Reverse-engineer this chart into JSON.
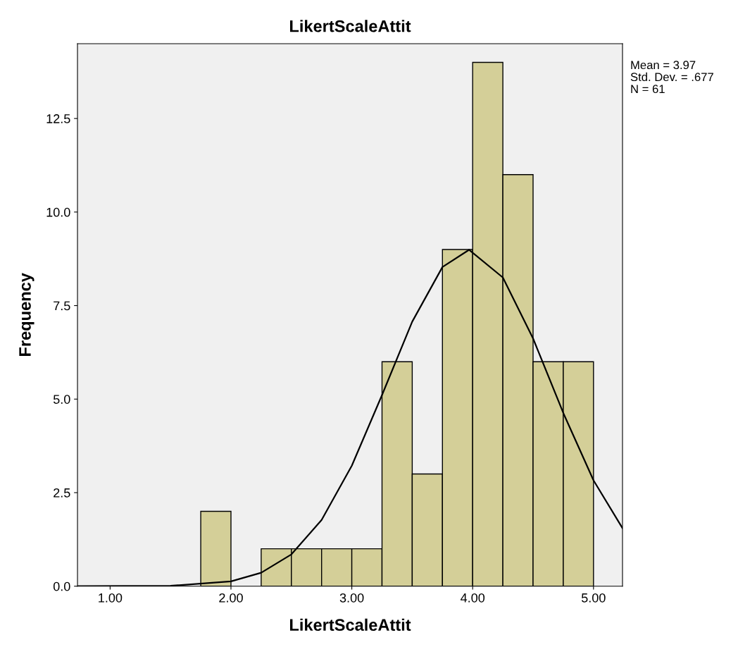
{
  "chart_data": {
    "type": "histogram",
    "title": "LikertScaleAttit",
    "xlabel": "LikertScaleAttit",
    "ylabel": "Frequency",
    "bins": [
      1.75,
      2.0,
      2.25,
      2.5,
      2.75,
      3.0,
      3.25,
      3.5,
      3.75,
      4.0,
      4.25,
      4.5,
      4.75,
      5.0
    ],
    "series": [
      {
        "color": "#d4cf98",
        "values": [
          2,
          0,
          1,
          1,
          1,
          1,
          6,
          3,
          9,
          14,
          11,
          6,
          6
        ]
      },
      {
        "type": "line",
        "color": "#000000",
        "x": [
          0.73,
          1.5,
          2.0,
          2.25,
          2.5,
          2.75,
          3.0,
          3.25,
          3.5,
          3.75,
          3.97,
          4.25,
          4.5,
          4.75,
          5.0,
          5.24
        ],
        "values": [
          0,
          0.01,
          0.13,
          0.36,
          0.85,
          1.77,
          3.22,
          5.11,
          7.07,
          8.53,
          8.99,
          8.25,
          6.62,
          4.63,
          2.83,
          1.55
        ]
      }
    ],
    "xlim": [
      0.73,
      5.24
    ],
    "ylim": [
      0,
      14.5
    ],
    "xticks": [
      {
        "value": 1,
        "label": "1.00"
      },
      {
        "value": 2,
        "label": "2.00"
      },
      {
        "value": 3,
        "label": "3.00"
      },
      {
        "value": 4,
        "label": "4.00"
      },
      {
        "value": 5,
        "label": "5.00"
      }
    ],
    "yticks": [
      {
        "value": 0,
        "label": "0.0"
      },
      {
        "value": 2.5,
        "label": "2.5"
      },
      {
        "value": 5,
        "label": "5.0"
      },
      {
        "value": 7.5,
        "label": "7.5"
      },
      {
        "value": 10,
        "label": "10.0"
      },
      {
        "value": 12.5,
        "label": "12.5"
      }
    ],
    "annotations": [
      "Mean = 3.97",
      "Std. Dev. = .677",
      "N = 61"
    ],
    "grid": false
  }
}
